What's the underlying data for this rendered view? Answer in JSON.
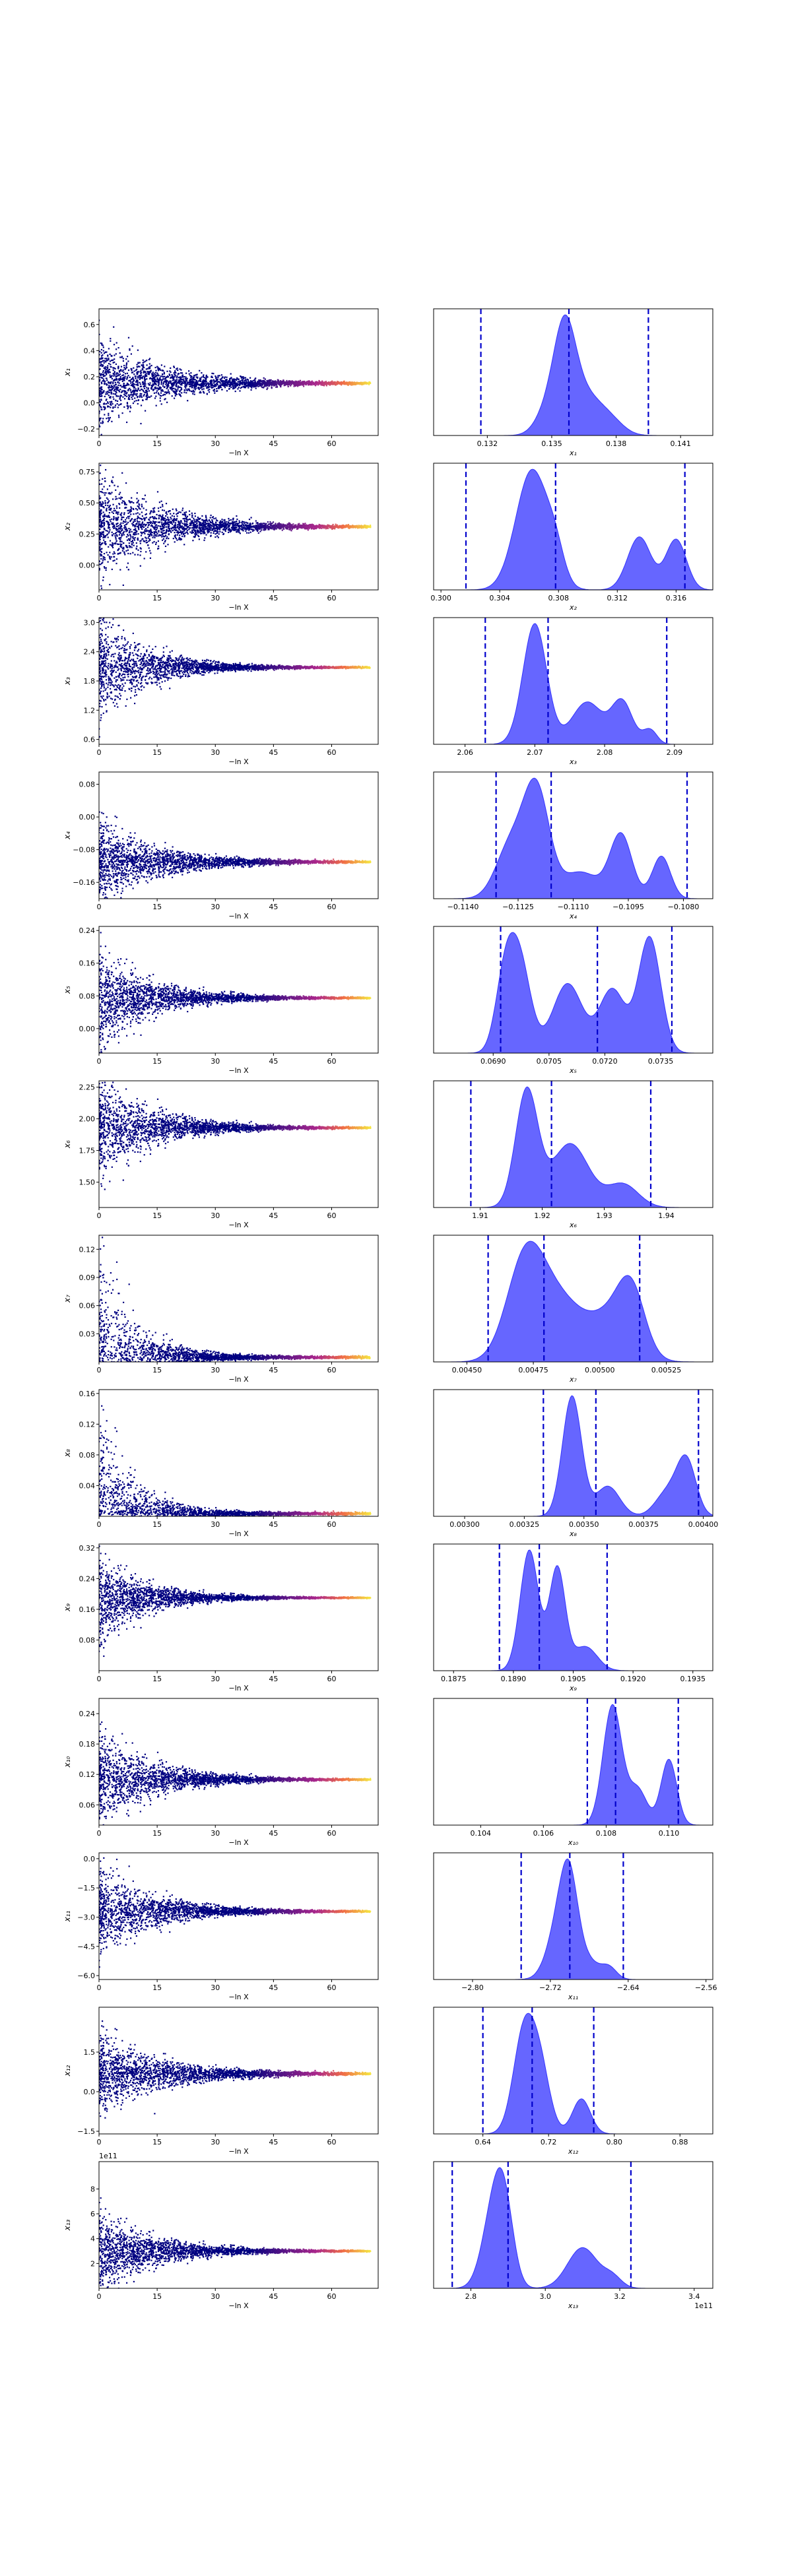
{
  "chart_data": {
    "type": "scatter+kde",
    "description_free": true,
    "colors": {
      "scatter_low": "#000080",
      "scatter_high": "#f5e642",
      "kde_fill": "#3333ff",
      "kde_alpha": 0.75,
      "quantile_line": "#0000cc"
    },
    "trace_xlabel": "−ln X",
    "trace_xticks": [
      0,
      15,
      30,
      45,
      60
    ],
    "trace_xlim": [
      0,
      72
    ],
    "rows": [
      {
        "param": "x1",
        "ylabel": "x₁",
        "xlabel": "x₁",
        "trace": {
          "yticks": [
            "0.6",
            "0.4",
            "0.2",
            "0.0",
            "−0.2"
          ],
          "ytick_vals": [
            0.6,
            0.4,
            0.2,
            0.0,
            -0.2
          ],
          "ylim": [
            -0.25,
            0.72
          ],
          "final": 0.15,
          "spread0": 0.35,
          "decay": 16
        },
        "kde": {
          "xticks": [
            "0.132",
            "0.135",
            "0.138",
            "0.141"
          ],
          "xtick_vals": [
            0.132,
            0.135,
            0.138,
            0.141
          ],
          "xlim": [
            0.1295,
            0.1425
          ],
          "quantiles": [
            0.1317,
            0.1358,
            0.1395
          ],
          "peaks": [
            [
              0.1348,
              0.00055,
              0.25
            ],
            [
              0.1356,
              0.0005,
              1.0
            ],
            [
              0.1365,
              0.0008,
              0.45
            ],
            [
              0.1378,
              0.0006,
              0.12
            ]
          ]
        }
      },
      {
        "param": "x2",
        "ylabel": "x₂",
        "xlabel": "x₂",
        "trace": {
          "yticks": [
            "0.75",
            "0.50",
            "0.25",
            "0.00"
          ],
          "ytick_vals": [
            0.75,
            0.5,
            0.25,
            0.0
          ],
          "ylim": [
            -0.2,
            0.82
          ],
          "final": 0.31,
          "spread0": 0.45,
          "decay": 15
        },
        "kde": {
          "xticks": [
            "0.300",
            "0.304",
            "0.308",
            "0.312",
            "0.316"
          ],
          "xtick_vals": [
            0.3,
            0.304,
            0.308,
            0.312,
            0.316
          ],
          "xlim": [
            0.2995,
            0.3185
          ],
          "quantiles": [
            0.3017,
            0.3078,
            0.3166
          ],
          "peaks": [
            [
              0.3062,
              0.0011,
              0.95
            ],
            [
              0.3078,
              0.0006,
              0.2
            ],
            [
              0.3135,
              0.0008,
              0.42
            ],
            [
              0.316,
              0.0007,
              0.4
            ]
          ]
        }
      },
      {
        "param": "x3",
        "ylabel": "x₃",
        "xlabel": "x₃",
        "trace": {
          "yticks": [
            "3.0",
            "2.4",
            "1.8",
            "1.2",
            "0.6"
          ],
          "ytick_vals": [
            3.0,
            2.4,
            1.8,
            1.2,
            0.6
          ],
          "ylim": [
            0.5,
            3.1
          ],
          "final": 2.08,
          "spread0": 1.1,
          "decay": 12
        },
        "kde": {
          "xticks": [
            "2.06",
            "2.07",
            "2.08",
            "2.09"
          ],
          "xtick_vals": [
            2.06,
            2.07,
            2.08,
            2.09
          ],
          "xlim": [
            2.0555,
            2.0955
          ],
          "quantiles": [
            2.0629,
            2.0719,
            2.0889
          ],
          "peaks": [
            [
              2.07,
              0.0017,
              1.0
            ],
            [
              2.0775,
              0.0022,
              0.35
            ],
            [
              2.0825,
              0.0015,
              0.35
            ],
            [
              2.0865,
              0.001,
              0.12
            ]
          ]
        }
      },
      {
        "param": "x4",
        "ylabel": "x₄",
        "xlabel": "x₄",
        "trace": {
          "yticks": [
            "0.08",
            "0.00",
            "−0.08",
            "−0.16"
          ],
          "ytick_vals": [
            0.08,
            0.0,
            -0.08,
            -0.16
          ],
          "ylim": [
            -0.2,
            0.11
          ],
          "final": -0.11,
          "spread0": 0.1,
          "decay": 15
        },
        "kde": {
          "xticks": [
            "−0.1140",
            "−0.1125",
            "−0.1110",
            "−0.1095",
            "−0.1080"
          ],
          "xtick_vals": [
            -0.114,
            -0.1125,
            -0.111,
            -0.1095,
            -0.108
          ],
          "xlim": [
            -0.1148,
            -0.1072
          ],
          "quantiles": [
            -0.1131,
            -0.1116,
            -0.1079
          ],
          "peaks": [
            [
              -0.1127,
              0.0004,
              0.5
            ],
            [
              -0.112,
              0.00035,
              1.0
            ],
            [
              -0.1108,
              0.0005,
              0.25
            ],
            [
              -0.1097,
              0.0003,
              0.6
            ],
            [
              -0.1086,
              0.00025,
              0.4
            ]
          ]
        }
      },
      {
        "param": "x5",
        "ylabel": "x₅",
        "xlabel": "x₅",
        "trace": {
          "yticks": [
            "0.24",
            "0.16",
            "0.08",
            "0.00"
          ],
          "ytick_vals": [
            0.24,
            0.16,
            0.08,
            0.0
          ],
          "ylim": [
            -0.06,
            0.25
          ],
          "final": 0.075,
          "spread0": 0.12,
          "decay": 13
        },
        "kde": {
          "xticks": [
            "0.0690",
            "0.0705",
            "0.0720",
            "0.0735"
          ],
          "xtick_vals": [
            0.069,
            0.0705,
            0.072,
            0.0735
          ],
          "xlim": [
            0.0674,
            0.0749
          ],
          "quantiles": [
            0.0692,
            0.0718,
            0.0738
          ],
          "peaks": [
            [
              0.0693,
              0.00025,
              0.55
            ],
            [
              0.0697,
              0.0003,
              0.8
            ],
            [
              0.071,
              0.0004,
              0.6
            ],
            [
              0.0722,
              0.00035,
              0.55
            ],
            [
              0.0732,
              0.0003,
              1.0
            ]
          ]
        }
      },
      {
        "param": "x6",
        "ylabel": "x₆",
        "xlabel": "x₆",
        "trace": {
          "yticks": [
            "2.25",
            "2.00",
            "1.75",
            "1.50"
          ],
          "ytick_vals": [
            2.25,
            2.0,
            1.75,
            1.5
          ],
          "ylim": [
            1.3,
            2.3
          ],
          "final": 1.93,
          "spread0": 0.42,
          "decay": 13
        },
        "kde": {
          "xticks": [
            "1.91",
            "1.92",
            "1.93",
            "1.94"
          ],
          "xtick_vals": [
            1.91,
            1.92,
            1.93,
            1.94
          ],
          "xlim": [
            1.9025,
            1.9475
          ],
          "quantiles": [
            1.9085,
            1.9215,
            1.9375
          ],
          "peaks": [
            [
              1.9175,
              0.0018,
              1.0
            ],
            [
              1.9245,
              0.003,
              0.55
            ],
            [
              1.933,
              0.0025,
              0.2
            ]
          ]
        }
      },
      {
        "param": "x7",
        "ylabel": "x₇",
        "xlabel": "x₇",
        "trace": {
          "yticks": [
            "0.12",
            "0.09",
            "0.06",
            "0.03"
          ],
          "ytick_vals": [
            0.12,
            0.09,
            0.06,
            0.03
          ],
          "ylim": [
            0.0,
            0.135
          ],
          "final": 0.005,
          "spread0": 0.1,
          "decay": 9
        },
        "kde": {
          "xticks": [
            "0.00450",
            "0.00475",
            "0.00500",
            "0.00525"
          ],
          "xtick_vals": [
            0.0045,
            0.00475,
            0.005,
            0.00525
          ],
          "xlim": [
            0.004375,
            0.005425
          ],
          "quantiles": [
            0.00458,
            0.00479,
            0.00515
          ],
          "peaks": [
            [
              0.00472,
              7e-05,
              1.0
            ],
            [
              0.00485,
              9e-05,
              0.6
            ],
            [
              0.00505,
              8e-05,
              0.45
            ],
            [
              0.00512,
              5e-05,
              0.55
            ]
          ]
        }
      },
      {
        "param": "x8",
        "ylabel": "x₈",
        "xlabel": "x₈",
        "trace": {
          "yticks": [
            "0.16",
            "0.12",
            "0.08",
            "0.04"
          ],
          "ytick_vals": [
            0.16,
            0.12,
            0.08,
            0.04
          ],
          "ylim": [
            0.0,
            0.165
          ],
          "final": 0.0035,
          "spread0": 0.12,
          "decay": 9
        },
        "kde": {
          "xticks": [
            "0.00300",
            "0.00325",
            "0.00350",
            "0.00375",
            "0.00400"
          ],
          "xtick_vals": [
            0.003,
            0.00325,
            0.0035,
            0.00375,
            0.004
          ],
          "xlim": [
            0.00287,
            0.00404
          ],
          "quantiles": [
            0.00333,
            0.00355,
            0.00398
          ],
          "peaks": [
            [
              0.00345,
              4e-05,
              1.0
            ],
            [
              0.0036,
              5e-05,
              0.25
            ],
            [
              0.00385,
              5e-05,
              0.2
            ],
            [
              0.00393,
              4e-05,
              0.45
            ]
          ]
        }
      },
      {
        "param": "x9",
        "ylabel": "x₉",
        "xlabel": "x₉",
        "trace": {
          "yticks": [
            "0.32",
            "0.24",
            "0.16",
            "0.08"
          ],
          "ytick_vals": [
            0.32,
            0.24,
            0.16,
            0.08
          ],
          "ylim": [
            0.0,
            0.33
          ],
          "final": 0.19,
          "spread0": 0.11,
          "decay": 12
        },
        "kde": {
          "xticks": [
            "0.1875",
            "0.1890",
            "0.1905",
            "0.1920",
            "0.1935"
          ],
          "xtick_vals": [
            0.1875,
            0.189,
            0.1905,
            0.192,
            0.1935
          ],
          "xlim": [
            0.187,
            0.194
          ],
          "quantiles": [
            0.18865,
            0.18965,
            0.19135
          ],
          "peaks": [
            [
              0.1894,
              0.00023,
              1.0
            ],
            [
              0.1901,
              0.0002,
              0.85
            ],
            [
              0.1908,
              0.0003,
              0.2
            ]
          ]
        }
      },
      {
        "param": "x10",
        "ylabel": "x₁₀",
        "xlabel": "x₁₀",
        "trace": {
          "yticks": [
            "0.24",
            "0.18",
            "0.12",
            "0.06"
          ],
          "ytick_vals": [
            0.24,
            0.18,
            0.12,
            0.06
          ],
          "ylim": [
            0.02,
            0.27
          ],
          "final": 0.11,
          "spread0": 0.1,
          "decay": 13
        },
        "kde": {
          "xticks": [
            "0.104",
            "0.106",
            "0.108",
            "0.110"
          ],
          "xtick_vals": [
            0.104,
            0.106,
            0.108,
            0.11
          ],
          "xlim": [
            0.1025,
            0.1114
          ],
          "quantiles": [
            0.1074,
            0.1083,
            0.1103
          ],
          "peaks": [
            [
              0.1082,
              0.0003,
              1.0
            ],
            [
              0.109,
              0.0003,
              0.3
            ],
            [
              0.11,
              0.00025,
              0.55
            ]
          ]
        }
      },
      {
        "param": "x11",
        "ylabel": "x₁₁",
        "xlabel": "x₁₁",
        "trace": {
          "yticks": [
            "0.0",
            "−1.5",
            "−3.0",
            "−4.5",
            "−6.0"
          ],
          "ytick_vals": [
            0.0,
            -1.5,
            -3.0,
            -4.5,
            -6.0
          ],
          "ylim": [
            -6.2,
            0.3
          ],
          "final": -2.7,
          "spread0": 2.2,
          "decay": 14
        },
        "kde": {
          "xticks": [
            "−2.80",
            "−2.72",
            "−2.64",
            "−2.56"
          ],
          "xtick_vals": [
            -2.8,
            -2.72,
            -2.64,
            -2.56
          ],
          "xlim": [
            -2.84,
            -2.553
          ],
          "quantiles": [
            -2.75,
            -2.7,
            -2.645
          ],
          "peaks": [
            [
              -2.71,
              0.012,
              0.7
            ],
            [
              -2.7,
              0.009,
              0.9
            ],
            [
              -2.68,
              0.01,
              0.2
            ],
            [
              -2.66,
              0.008,
              0.15
            ]
          ]
        }
      },
      {
        "param": "x12",
        "ylabel": "x₁₂",
        "xlabel": "x₁₂",
        "trace": {
          "yticks": [
            "1.5",
            "0.0",
            "−1.5"
          ],
          "ytick_vals": [
            1.5,
            0.0,
            -1.5
          ],
          "ylim": [
            -1.6,
            3.2
          ],
          "final": 0.68,
          "spread0": 1.5,
          "decay": 16
        },
        "kde": {
          "xticks": [
            "0.64",
            "0.72",
            "0.80",
            "0.88"
          ],
          "xtick_vals": [
            0.64,
            0.72,
            0.8,
            0.88
          ],
          "xlim": [
            0.58,
            0.92
          ],
          "quantiles": [
            0.64,
            0.7,
            0.775
          ],
          "peaks": [
            [
              0.69,
              0.013,
              1.0
            ],
            [
              0.71,
              0.012,
              0.6
            ],
            [
              0.76,
              0.011,
              0.35
            ]
          ]
        }
      },
      {
        "param": "x13",
        "ylabel": "x₁₃",
        "xlabel": "x₁₃",
        "offset_label": "1e11",
        "trace": {
          "yticks": [
            "8",
            "6",
            "4",
            "2"
          ],
          "ytick_vals": [
            8,
            6,
            4,
            2
          ],
          "ylim": [
            0,
            10.2
          ],
          "final": 3.0,
          "spread0": 3.2,
          "decay": 14
        },
        "kde": {
          "xticks": [
            "2.8",
            "3.0",
            "3.2",
            "3.4"
          ],
          "xtick_vals": [
            2.8,
            3.0,
            3.2,
            3.4
          ],
          "xlim": [
            2.7,
            3.45
          ],
          "quantiles": [
            2.75,
            2.9,
            3.23
          ],
          "peaks": [
            [
              2.86,
              0.03,
              0.8
            ],
            [
              2.89,
              0.025,
              0.75
            ],
            [
              3.1,
              0.04,
              0.45
            ],
            [
              3.18,
              0.025,
              0.12
            ]
          ],
          "offset_label": "1e11"
        }
      }
    ]
  }
}
